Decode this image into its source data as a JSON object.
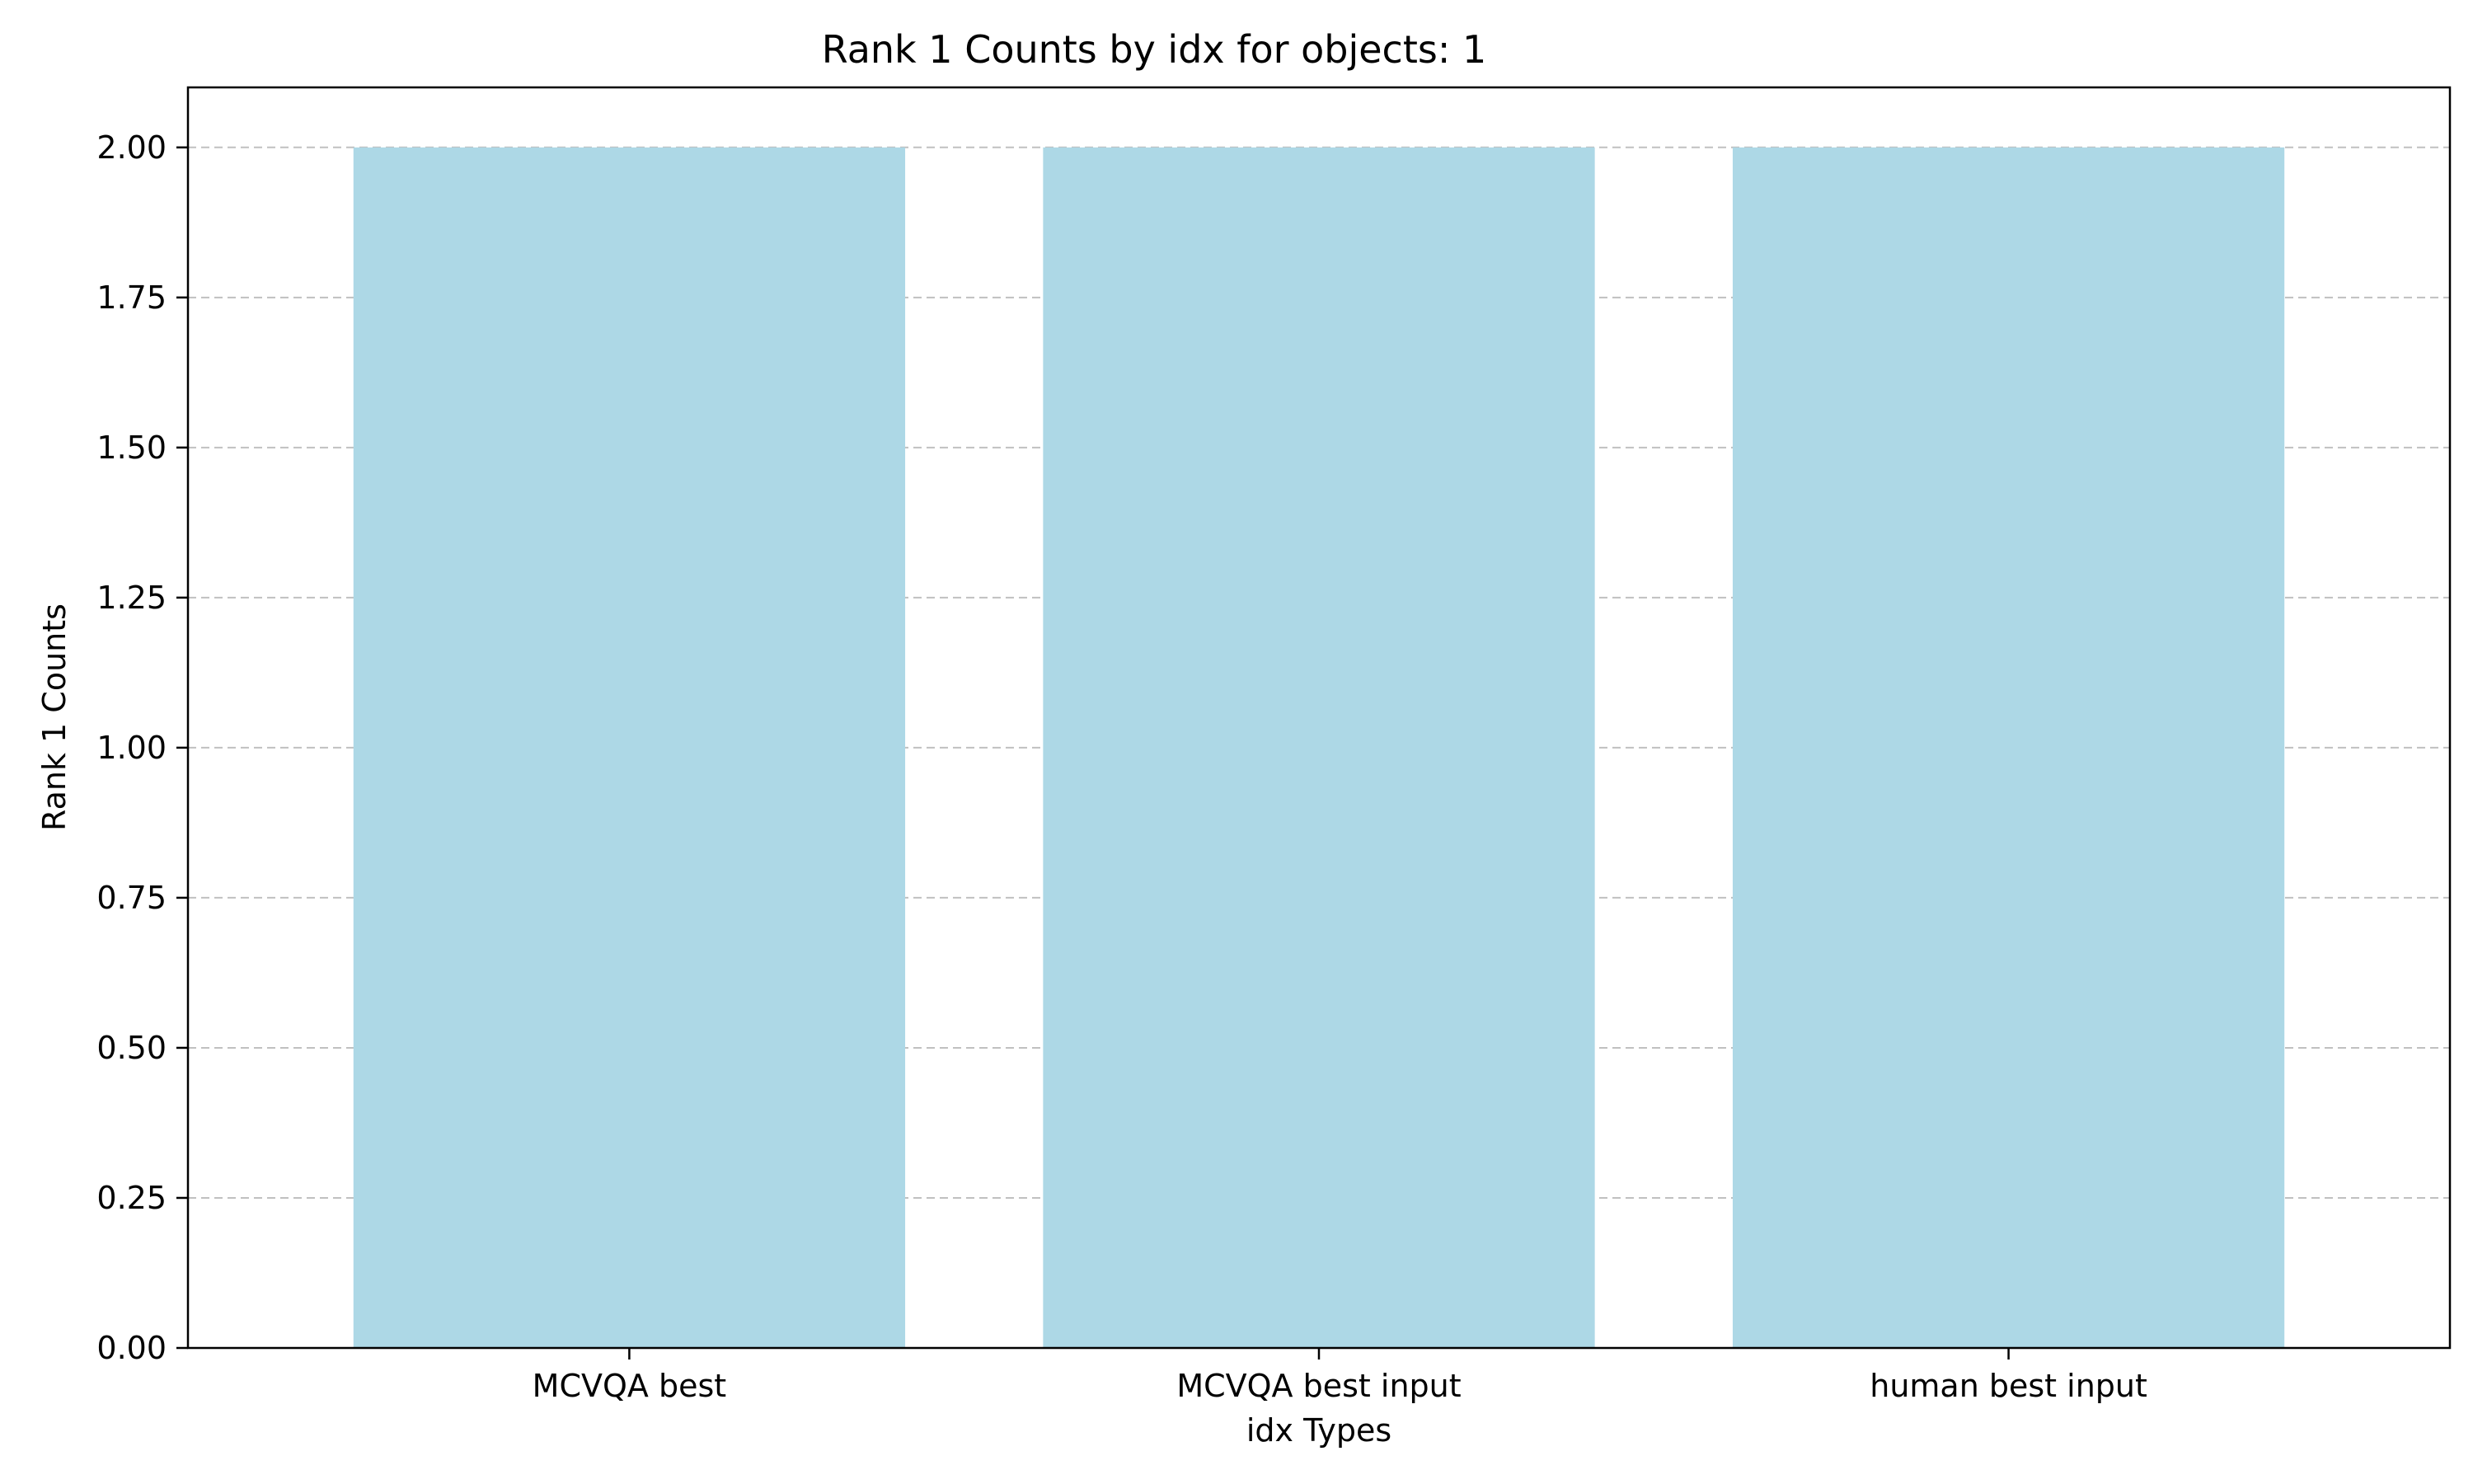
{
  "chart_data": {
    "type": "bar",
    "title": "Rank 1 Counts by idx for objects: 1",
    "xlabel": "idx Types",
    "ylabel": "Rank 1 Counts",
    "categories": [
      "MCVQA best",
      "MCVQA best input",
      "human best input"
    ],
    "values": [
      2,
      2,
      2
    ],
    "ylim": [
      0,
      2.1
    ],
    "yticks": [
      "0.00",
      "0.25",
      "0.50",
      "0.75",
      "1.00",
      "1.25",
      "1.50",
      "1.75",
      "2.00"
    ],
    "grid": "y-axis dashed",
    "legend": "none",
    "colors": {
      "bar": "#add8e6",
      "grid": "#c0c0c0",
      "axis": "#000000"
    }
  }
}
